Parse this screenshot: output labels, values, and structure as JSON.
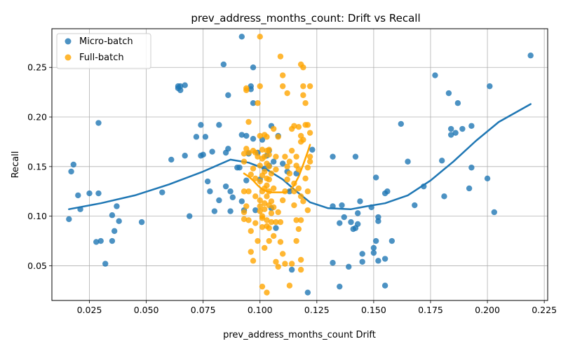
{
  "chart_data": {
    "type": "scatter",
    "title": "prev_address_months_count: Drift vs Recall",
    "xlabel": "prev_address_months_count Drift",
    "ylabel": "Recall",
    "xlim": [
      0.0085,
      0.2265
    ],
    "ylim": [
      0.015,
      0.289
    ],
    "xticks": [
      0.025,
      0.05,
      0.075,
      0.1,
      0.125,
      0.15,
      0.175,
      0.2,
      0.225
    ],
    "xtick_labels": [
      "0.025",
      "0.050",
      "0.075",
      "0.100",
      "0.125",
      "0.150",
      "0.175",
      "0.200",
      "0.225"
    ],
    "yticks": [
      0.05,
      0.1,
      0.15,
      0.2,
      0.25
    ],
    "ytick_labels": [
      "0.05",
      "0.10",
      "0.15",
      "0.20",
      "0.25"
    ],
    "grid": true,
    "legend_position": "top-left",
    "series": [
      {
        "name": "Micro-batch",
        "color": "#1f77b4",
        "points": [
          [
            0.016,
            0.097
          ],
          [
            0.017,
            0.145
          ],
          [
            0.018,
            0.152
          ],
          [
            0.02,
            0.121
          ],
          [
            0.021,
            0.107
          ],
          [
            0.025,
            0.123
          ],
          [
            0.028,
            0.074
          ],
          [
            0.029,
            0.194
          ],
          [
            0.029,
            0.123
          ],
          [
            0.03,
            0.075
          ],
          [
            0.032,
            0.052
          ],
          [
            0.035,
            0.075
          ],
          [
            0.035,
            0.101
          ],
          [
            0.036,
            0.085
          ],
          [
            0.037,
            0.11
          ],
          [
            0.038,
            0.095
          ],
          [
            0.048,
            0.094
          ],
          [
            0.057,
            0.124
          ],
          [
            0.061,
            0.157
          ],
          [
            0.064,
            0.229
          ],
          [
            0.064,
            0.231
          ],
          [
            0.065,
            0.227
          ],
          [
            0.065,
            0.231
          ],
          [
            0.067,
            0.232
          ],
          [
            0.067,
            0.161
          ],
          [
            0.069,
            0.1
          ],
          [
            0.072,
            0.18
          ],
          [
            0.074,
            0.192
          ],
          [
            0.074,
            0.161
          ],
          [
            0.075,
            0.162
          ],
          [
            0.076,
            0.18
          ],
          [
            0.077,
            0.135
          ],
          [
            0.078,
            0.125
          ],
          [
            0.079,
            0.165
          ],
          [
            0.08,
            0.105
          ],
          [
            0.082,
            0.192
          ],
          [
            0.082,
            0.116
          ],
          [
            0.084,
            0.253
          ],
          [
            0.085,
            0.164
          ],
          [
            0.085,
            0.13
          ],
          [
            0.086,
            0.168
          ],
          [
            0.086,
            0.222
          ],
          [
            0.087,
            0.125
          ],
          [
            0.087,
            0.105
          ],
          [
            0.088,
            0.119
          ],
          [
            0.09,
            0.149
          ],
          [
            0.091,
            0.149
          ],
          [
            0.092,
            0.182
          ],
          [
            0.092,
            0.281
          ],
          [
            0.092,
            0.115
          ],
          [
            0.093,
            0.106
          ],
          [
            0.094,
            0.136
          ],
          [
            0.094,
            0.181
          ],
          [
            0.095,
            0.163
          ],
          [
            0.096,
            0.231
          ],
          [
            0.096,
            0.228
          ],
          [
            0.097,
            0.25
          ],
          [
            0.097,
            0.214
          ],
          [
            0.097,
            0.178
          ],
          [
            0.098,
            0.106
          ],
          [
            0.099,
            0.164
          ],
          [
            0.1,
            0.137
          ],
          [
            0.101,
            0.177
          ],
          [
            0.102,
            0.148
          ],
          [
            0.103,
            0.161
          ],
          [
            0.104,
            0.166
          ],
          [
            0.104,
            0.151
          ],
          [
            0.105,
            0.108
          ],
          [
            0.105,
            0.191
          ],
          [
            0.106,
            0.155
          ],
          [
            0.107,
            0.088
          ],
          [
            0.108,
            0.181
          ],
          [
            0.11,
            0.153
          ],
          [
            0.112,
            0.145
          ],
          [
            0.113,
            0.125
          ],
          [
            0.114,
            0.046
          ],
          [
            0.116,
            0.143
          ],
          [
            0.121,
            0.023
          ],
          [
            0.123,
            0.167
          ],
          [
            0.132,
            0.053
          ],
          [
            0.132,
            0.11
          ],
          [
            0.132,
            0.16
          ],
          [
            0.135,
            0.029
          ],
          [
            0.135,
            0.093
          ],
          [
            0.136,
            0.111
          ],
          [
            0.137,
            0.099
          ],
          [
            0.139,
            0.049
          ],
          [
            0.14,
            0.094
          ],
          [
            0.141,
            0.087
          ],
          [
            0.142,
            0.16
          ],
          [
            0.142,
            0.088
          ],
          [
            0.143,
            0.103
          ],
          [
            0.143,
            0.092
          ],
          [
            0.144,
            0.115
          ],
          [
            0.145,
            0.054
          ],
          [
            0.145,
            0.062
          ],
          [
            0.149,
            0.109
          ],
          [
            0.15,
            0.068
          ],
          [
            0.15,
            0.063
          ],
          [
            0.151,
            0.075
          ],
          [
            0.151,
            0.139
          ],
          [
            0.152,
            0.099
          ],
          [
            0.152,
            0.055
          ],
          [
            0.152,
            0.095
          ],
          [
            0.155,
            0.123
          ],
          [
            0.155,
            0.03
          ],
          [
            0.155,
            0.057
          ],
          [
            0.156,
            0.125
          ],
          [
            0.158,
            0.075
          ],
          [
            0.162,
            0.193
          ],
          [
            0.165,
            0.155
          ],
          [
            0.168,
            0.111
          ],
          [
            0.172,
            0.13
          ],
          [
            0.177,
            0.242
          ],
          [
            0.18,
            0.156
          ],
          [
            0.181,
            0.12
          ],
          [
            0.183,
            0.224
          ],
          [
            0.184,
            0.188
          ],
          [
            0.184,
            0.182
          ],
          [
            0.186,
            0.184
          ],
          [
            0.187,
            0.214
          ],
          [
            0.189,
            0.188
          ],
          [
            0.192,
            0.128
          ],
          [
            0.193,
            0.149
          ],
          [
            0.193,
            0.191
          ],
          [
            0.2,
            0.138
          ],
          [
            0.201,
            0.231
          ],
          [
            0.203,
            0.104
          ],
          [
            0.219,
            0.262
          ]
        ],
        "trend": [
          [
            0.016,
            0.107
          ],
          [
            0.03,
            0.113
          ],
          [
            0.045,
            0.121
          ],
          [
            0.06,
            0.132
          ],
          [
            0.075,
            0.145
          ],
          [
            0.08,
            0.15
          ],
          [
            0.087,
            0.157
          ],
          [
            0.095,
            0.154
          ],
          [
            0.103,
            0.147
          ],
          [
            0.11,
            0.137
          ],
          [
            0.116,
            0.125
          ],
          [
            0.122,
            0.114
          ],
          [
            0.13,
            0.108
          ],
          [
            0.14,
            0.107
          ],
          [
            0.147,
            0.11
          ],
          [
            0.155,
            0.113
          ],
          [
            0.165,
            0.121
          ],
          [
            0.175,
            0.136
          ],
          [
            0.185,
            0.155
          ],
          [
            0.195,
            0.176
          ],
          [
            0.205,
            0.195
          ],
          [
            0.219,
            0.213
          ]
        ]
      },
      {
        "name": "Full-batch",
        "color": "#ffa500",
        "points": [
          [
            0.093,
            0.097
          ],
          [
            0.093,
            0.104
          ],
          [
            0.093,
            0.125
          ],
          [
            0.093,
            0.155
          ],
          [
            0.093,
            0.163
          ],
          [
            0.094,
            0.11
          ],
          [
            0.094,
            0.168
          ],
          [
            0.094,
            0.227
          ],
          [
            0.094,
            0.229
          ],
          [
            0.095,
            0.125
          ],
          [
            0.095,
            0.164
          ],
          [
            0.095,
            0.195
          ],
          [
            0.095,
            0.096
          ],
          [
            0.096,
            0.085
          ],
          [
            0.096,
            0.064
          ],
          [
            0.096,
            0.142
          ],
          [
            0.097,
            0.055
          ],
          [
            0.097,
            0.166
          ],
          [
            0.097,
            0.148
          ],
          [
            0.098,
            0.12
          ],
          [
            0.098,
            0.164
          ],
          [
            0.098,
            0.138
          ],
          [
            0.098,
            0.093
          ],
          [
            0.099,
            0.214
          ],
          [
            0.099,
            0.075
          ],
          [
            0.099,
            0.16
          ],
          [
            0.1,
            0.105
          ],
          [
            0.1,
            0.11
          ],
          [
            0.1,
            0.116
          ],
          [
            0.1,
            0.135
          ],
          [
            0.1,
            0.151
          ],
          [
            0.1,
            0.181
          ],
          [
            0.1,
            0.231
          ],
          [
            0.1,
            0.281
          ],
          [
            0.101,
            0.089
          ],
          [
            0.101,
            0.098
          ],
          [
            0.101,
            0.1
          ],
          [
            0.101,
            0.125
          ],
          [
            0.101,
            0.141
          ],
          [
            0.101,
            0.158
          ],
          [
            0.101,
            0.167
          ],
          [
            0.101,
            0.029
          ],
          [
            0.102,
            0.068
          ],
          [
            0.102,
            0.107
          ],
          [
            0.102,
            0.113
          ],
          [
            0.102,
            0.128
          ],
          [
            0.102,
            0.145
          ],
          [
            0.102,
            0.16
          ],
          [
            0.102,
            0.182
          ],
          [
            0.103,
            0.023
          ],
          [
            0.103,
            0.09
          ],
          [
            0.103,
            0.096
          ],
          [
            0.103,
            0.12
          ],
          [
            0.103,
            0.131
          ],
          [
            0.103,
            0.138
          ],
          [
            0.103,
            0.153
          ],
          [
            0.103,
            0.166
          ],
          [
            0.103,
            0.18
          ],
          [
            0.104,
            0.075
          ],
          [
            0.104,
            0.088
          ],
          [
            0.104,
            0.111
          ],
          [
            0.104,
            0.125
          ],
          [
            0.104,
            0.137
          ],
          [
            0.104,
            0.15
          ],
          [
            0.104,
            0.162
          ],
          [
            0.104,
            0.167
          ],
          [
            0.105,
            0.094
          ],
          [
            0.105,
            0.103
          ],
          [
            0.105,
            0.115
          ],
          [
            0.105,
            0.143
          ],
          [
            0.106,
            0.08
          ],
          [
            0.106,
            0.109
          ],
          [
            0.106,
            0.128
          ],
          [
            0.106,
            0.188
          ],
          [
            0.107,
            0.054
          ],
          [
            0.107,
            0.094
          ],
          [
            0.107,
            0.147
          ],
          [
            0.107,
            0.16
          ],
          [
            0.108,
            0.049
          ],
          [
            0.108,
            0.104
          ],
          [
            0.108,
            0.18
          ],
          [
            0.109,
            0.074
          ],
          [
            0.109,
            0.094
          ],
          [
            0.109,
            0.261
          ],
          [
            0.11,
            0.231
          ],
          [
            0.11,
            0.242
          ],
          [
            0.11,
            0.062
          ],
          [
            0.11,
            0.116
          ],
          [
            0.111,
            0.052
          ],
          [
            0.111,
            0.125
          ],
          [
            0.111,
            0.16
          ],
          [
            0.112,
            0.224
          ],
          [
            0.112,
            0.137
          ],
          [
            0.112,
            0.15
          ],
          [
            0.113,
            0.03
          ],
          [
            0.113,
            0.143
          ],
          [
            0.113,
            0.155
          ],
          [
            0.114,
            0.052
          ],
          [
            0.114,
            0.166
          ],
          [
            0.114,
            0.188
          ],
          [
            0.115,
            0.111
          ],
          [
            0.115,
            0.125
          ],
          [
            0.115,
            0.133
          ],
          [
            0.115,
            0.191
          ],
          [
            0.116,
            0.096
          ],
          [
            0.116,
            0.075
          ],
          [
            0.116,
            0.151
          ],
          [
            0.116,
            0.16
          ],
          [
            0.117,
            0.087
          ],
          [
            0.117,
            0.128
          ],
          [
            0.117,
            0.147
          ],
          [
            0.117,
            0.19
          ],
          [
            0.118,
            0.046
          ],
          [
            0.118,
            0.056
          ],
          [
            0.118,
            0.12
          ],
          [
            0.118,
            0.175
          ],
          [
            0.118,
            0.181
          ],
          [
            0.118,
            0.253
          ],
          [
            0.118,
            0.096
          ],
          [
            0.119,
            0.222
          ],
          [
            0.119,
            0.231
          ],
          [
            0.119,
            0.25
          ],
          [
            0.119,
            0.177
          ],
          [
            0.119,
            0.115
          ],
          [
            0.12,
            0.138
          ],
          [
            0.12,
            0.192
          ],
          [
            0.12,
            0.214
          ],
          [
            0.121,
            0.106
          ],
          [
            0.121,
            0.149
          ],
          [
            0.121,
            0.192
          ],
          [
            0.121,
            0.125
          ],
          [
            0.122,
            0.155
          ],
          [
            0.122,
            0.16
          ],
          [
            0.122,
            0.184
          ],
          [
            0.122,
            0.231
          ]
        ],
        "trend": [
          [
            0.093,
            0.143
          ],
          [
            0.095,
            0.14
          ],
          [
            0.097,
            0.136
          ],
          [
            0.099,
            0.131
          ],
          [
            0.101,
            0.127
          ],
          [
            0.103,
            0.125
          ],
          [
            0.105,
            0.124
          ],
          [
            0.107,
            0.124
          ],
          [
            0.109,
            0.124
          ],
          [
            0.111,
            0.124
          ],
          [
            0.113,
            0.126
          ],
          [
            0.115,
            0.131
          ],
          [
            0.117,
            0.14
          ],
          [
            0.119,
            0.152
          ],
          [
            0.121,
            0.165
          ],
          [
            0.122,
            0.172
          ]
        ]
      }
    ]
  }
}
